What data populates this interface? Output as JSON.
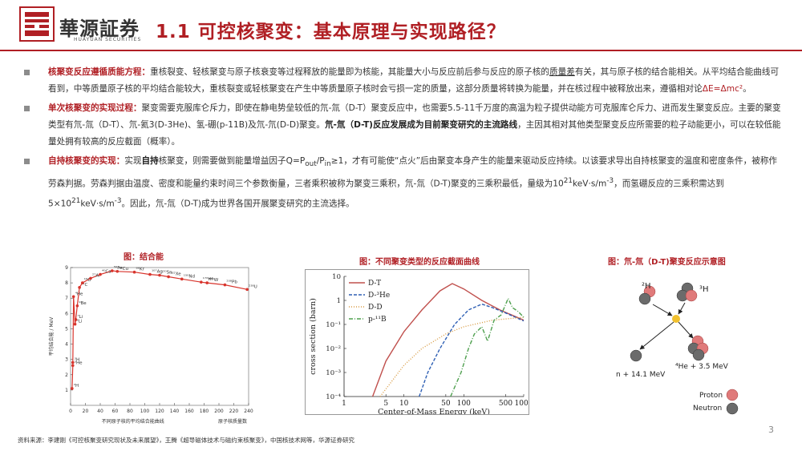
{
  "header": {
    "brand_cn": "華源証券",
    "brand_en": "HUAYUAN SECURITIES",
    "title": "1.1 可控核聚变：基本原理与实现路径？"
  },
  "bullets": [
    {
      "lead": "核聚变反应遵循质能方程：",
      "t1": "重核裂变、轻核聚变与原子核衰变等过程释放的能量即为核能，其能量大小与反应前后参与反应的原子核的",
      "t2": "质量差",
      "t3": "有关，其与原子核的结合能相关。从平均结合能曲线可看到，中等质量原子核的平均结合能较大，重核裂变或轻核聚变在产生中等质量原子核时会亏损一定的质量，这部分质量将转换为能量，并在核过程中被释放出来，遵循相对论",
      "t4": "ΔE=Δmc²",
      "t5": "。"
    },
    {
      "lead": "单次核聚变的实现过程：",
      "t1": "聚变需要克服库仑斥力，即使在静电势垒较低的氘-氚（D-T）聚变反应中，也需要5.5-11千万度的高温为粒子提供动能方可克服库仑斥力、进而发生聚变反应。主要的聚变类型有氘-氚（D-T）、氘-氦3(D-3He)、氢-硼(p-11B)及氘-氘(D-D)聚变。",
      "t2": "氘-氚（D-T)反应发展成为目前聚变研究的主流路线",
      "t3": "，主因其相对其他类型聚变反应所需要的粒子动能更小，可以在较低能量处拥有较高的反应截面（概率）。"
    },
    {
      "lead": "自持核聚变的实现：",
      "t1": "实现",
      "t2": "自持",
      "t3": "核聚变，则需要做到能量增益因子Q=P",
      "sub1": "out",
      "t4": "/P",
      "sub2": "in",
      "t5": "≥1，才有可能使“点火”后由聚变本身产生的能量来驱动反应持续。以该要求导出自持核聚变的温度和密度条件，被称作劳森判据。劳森判据由温度、密度和能量约束时间三个参数衡量，三者乘积被称为聚变三乘积，氘-氚（D-T)聚变的三乘积最低，量级为10",
      "sup1": "21",
      "t6": "keV·s/m",
      "sup2": "-3",
      "t7": "，而氢硼反应的三乘积需达到5×10",
      "sup3": "21",
      "t8": "keV·s/m",
      "sup4": "-3",
      "t9": "。因此，氘-氚（D-T)成为世界各国开展聚变研究的主流选择。"
    }
  ],
  "figures": {
    "fig1_title": "图：结合能",
    "fig2_title": "图：不同聚变类型的反应截面曲线",
    "fig3_title": "图：氘-氚（D-T)聚变反应示意图"
  },
  "chart_data": [
    {
      "type": "scatter",
      "title": "图：结合能",
      "xlabel": "不同原子核的平均结合能曲线",
      "xlabel2": "原子核质量数",
      "ylabel": "平均结合能 / MeV",
      "xticks": [
        "0",
        "20",
        "40",
        "60",
        "80",
        "100",
        "120",
        "140",
        "160",
        "180",
        "200",
        "220",
        "240"
      ],
      "yticks": [
        "1",
        "2",
        "3",
        "4",
        "5",
        "6",
        "7",
        "8",
        "9"
      ],
      "xlim": [
        0,
        240
      ],
      "ylim": [
        0,
        9
      ],
      "points": [
        {
          "label": "²H",
          "x": 2,
          "y": 1.1
        },
        {
          "label": "³H",
          "x": 3,
          "y": 2.8
        },
        {
          "label": "³He",
          "x": 3,
          "y": 2.6
        },
        {
          "label": "⁶Li",
          "x": 6,
          "y": 5.3
        },
        {
          "label": "⁷Li",
          "x": 7,
          "y": 5.6
        },
        {
          "label": "⁹Be",
          "x": 9,
          "y": 6.5
        },
        {
          "label": "⁴He",
          "x": 4,
          "y": 7.1
        },
        {
          "label": "¹²C",
          "x": 12,
          "y": 7.7
        },
        {
          "label": "¹⁶O",
          "x": 16,
          "y": 8.0
        },
        {
          "label": "²⁷Al",
          "x": 27,
          "y": 8.3
        },
        {
          "label": "⁴⁰Ca",
          "x": 40,
          "y": 8.55
        },
        {
          "label": "⁵⁶Fe",
          "x": 56,
          "y": 8.79
        },
        {
          "label": "⁶³Cu",
          "x": 63,
          "y": 8.75
        },
        {
          "label": "⁸⁶Kr",
          "x": 86,
          "y": 8.7
        },
        {
          "label": "¹⁰⁷Ag",
          "x": 107,
          "y": 8.55
        },
        {
          "label": "¹²⁰Sn",
          "x": 120,
          "y": 8.5
        },
        {
          "label": "¹³²Xe",
          "x": 132,
          "y": 8.4
        },
        {
          "label": "¹⁵⁰Nd",
          "x": 150,
          "y": 8.25
        },
        {
          "label": "¹⁷⁶Hf",
          "x": 176,
          "y": 8.05
        },
        {
          "label": "¹⁸⁴W",
          "x": 184,
          "y": 8.0
        },
        {
          "label": "²⁰⁸Pb",
          "x": 208,
          "y": 7.87
        },
        {
          "label": "²³⁸U",
          "x": 238,
          "y": 7.57
        }
      ]
    },
    {
      "type": "line",
      "title": "图：不同聚变类型的反应截面曲线",
      "xlabel": "Center-of-Mass Energy (keV)",
      "ylabel": "cross section (barn)",
      "x_scale": "log",
      "y_scale": "log",
      "xlim": [
        1,
        1000
      ],
      "ylim": [
        0.0001,
        10
      ],
      "xticks": [
        "1",
        "5",
        "10",
        "50",
        "100",
        "500",
        "1000"
      ],
      "yticks": [
        "10⁻⁴",
        "10⁻³",
        "10⁻²",
        "10⁻¹",
        "1",
        "10"
      ],
      "legend_position": "top-left",
      "series": [
        {
          "name": "D-T",
          "color": "#c0504d",
          "style": "solid",
          "x": [
            3,
            5,
            10,
            20,
            40,
            64,
            100,
            200,
            400,
            1000
          ],
          "y": [
            0.0001,
            0.003,
            0.05,
            0.4,
            2.5,
            5,
            3,
            1,
            0.4,
            0.15
          ]
        },
        {
          "name": "D-³He",
          "color": "#2e5fb4",
          "style": "dashed",
          "x": [
            18,
            25,
            40,
            70,
            120,
            200,
            300,
            500,
            1000
          ],
          "y": [
            0.0001,
            0.001,
            0.01,
            0.1,
            0.4,
            0.7,
            0.5,
            0.3,
            0.14
          ]
        },
        {
          "name": "D-D",
          "color": "#d89a42",
          "style": "dotted",
          "x": [
            4,
            10,
            20,
            50,
            100,
            300,
            1000
          ],
          "y": [
            0.0001,
            0.002,
            0.01,
            0.04,
            0.08,
            0.15,
            0.2
          ]
        },
        {
          "name": "p-¹¹B",
          "color": "#4fa04f",
          "style": "dashdot",
          "x": [
            60,
            90,
            120,
            150,
            200,
            250,
            320,
            420,
            550,
            650,
            800,
            1000
          ],
          "y": [
            0.0001,
            0.001,
            0.01,
            0.04,
            0.08,
            0.02,
            0.15,
            0.25,
            1.2,
            0.5,
            0.35,
            0.2
          ]
        }
      ]
    }
  ],
  "diagram": {
    "d_label": "²H",
    "t_label": "³H",
    "he_label": "⁴He + 3.5 MeV",
    "n_label": "n + 14.1 MeV",
    "legend_proton": "Proton",
    "legend_neutron": "Neutron",
    "proton_color": "#e07a7a",
    "neutron_color": "#6b6b6b"
  },
  "footer": {
    "source": "资料来源：李建刚《可控核聚变研究现状及未来展望》，王腾《超导磁体技术与磁约束核聚变》，中国核技术网等，华源证券研究",
    "page": "3"
  }
}
